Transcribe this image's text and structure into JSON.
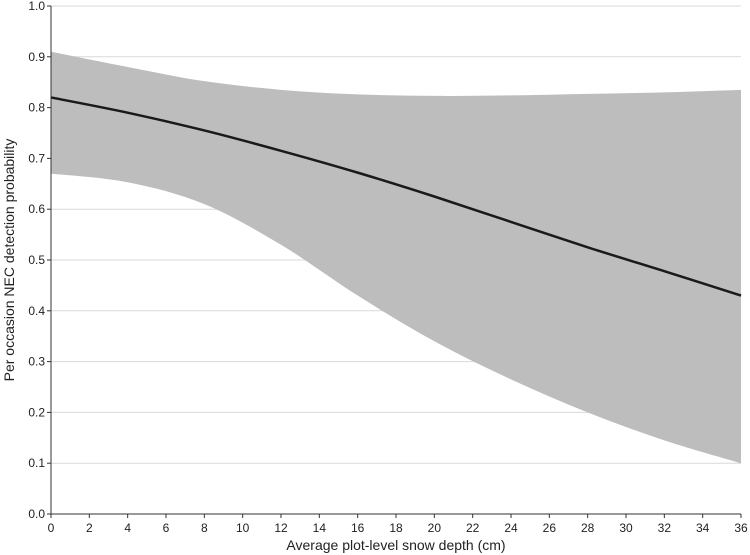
{
  "chart_data": {
    "type": "line",
    "xlabel": "Average plot-level snow depth (cm)",
    "ylabel": "Per occasion NEC detection probability",
    "xlim": [
      0,
      36
    ],
    "ylim": [
      0.0,
      1.0
    ],
    "x_ticks": [
      0,
      2,
      4,
      6,
      8,
      10,
      12,
      14,
      16,
      18,
      20,
      22,
      24,
      26,
      28,
      30,
      32,
      34,
      36
    ],
    "y_ticks": [
      "0.0",
      "0.1",
      "0.2",
      "0.3",
      "0.4",
      "0.5",
      "0.6",
      "0.7",
      "0.8",
      "0.9",
      "1.0"
    ],
    "grid": "horizontal",
    "colors": {
      "line": "#1a1a1a",
      "band": "#bdbdbd",
      "grid": "#d9d9d9",
      "axis": "#333333"
    },
    "series": [
      {
        "x": [
          0,
          4,
          8,
          12,
          16,
          20,
          24,
          28,
          32,
          36
        ],
        "y": [
          0.82,
          0.79,
          0.755,
          0.715,
          0.672,
          0.625,
          0.575,
          0.525,
          0.478,
          0.43
        ],
        "lower": [
          0.67,
          0.653,
          0.61,
          0.53,
          0.43,
          0.34,
          0.265,
          0.2,
          0.145,
          0.1
        ],
        "upper": [
          0.91,
          0.88,
          0.852,
          0.835,
          0.826,
          0.823,
          0.824,
          0.827,
          0.83,
          0.835
        ]
      }
    ]
  }
}
